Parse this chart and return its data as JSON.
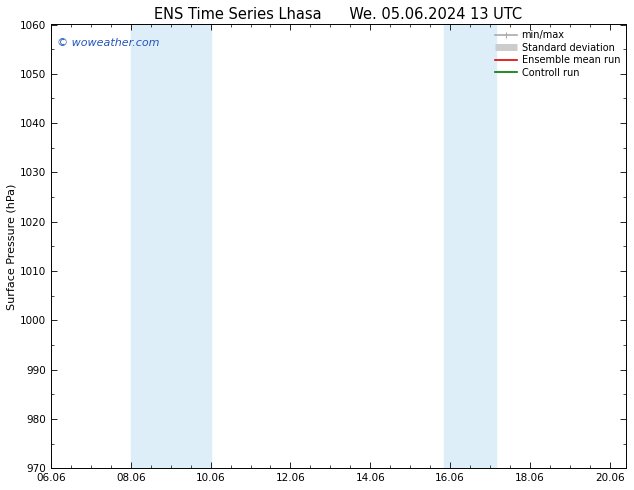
{
  "title": "ENS Time Series Lhasa",
  "title2": "We. 05.06.2024 13 UTC",
  "ylabel": "Surface Pressure (hPa)",
  "ylim": [
    970,
    1060
  ],
  "yticks": [
    970,
    980,
    990,
    1000,
    1010,
    1020,
    1030,
    1040,
    1050,
    1060
  ],
  "xlim": [
    0.0,
    14.4
  ],
  "xtick_labels": [
    "06.06",
    "08.06",
    "10.06",
    "12.06",
    "14.06",
    "16.06",
    "18.06",
    "20.06"
  ],
  "xtick_positions": [
    0,
    2,
    4,
    6,
    8,
    10,
    12,
    14
  ],
  "shaded_bands": [
    {
      "x_start": 2.0,
      "x_end": 4.0
    },
    {
      "x_start": 9.85,
      "x_end": 11.15
    }
  ],
  "shaded_color": "#ddeef8",
  "watermark": "© woweather.com",
  "watermark_color": "#2255bb",
  "background_color": "#ffffff",
  "plot_bg_color": "#ffffff",
  "legend_items": [
    {
      "label": "min/max",
      "color": "#aaaaaa",
      "lw": 1.2,
      "ls": "-"
    },
    {
      "label": "Standard deviation",
      "color": "#cccccc",
      "lw": 5,
      "ls": "-"
    },
    {
      "label": "Ensemble mean run",
      "color": "#dd0000",
      "lw": 1.2,
      "ls": "-"
    },
    {
      "label": "Controll run",
      "color": "#007700",
      "lw": 1.2,
      "ls": "-"
    }
  ],
  "title_fontsize": 10.5,
  "ylabel_fontsize": 8,
  "tick_fontsize": 7.5,
  "legend_fontsize": 7,
  "watermark_fontsize": 8
}
